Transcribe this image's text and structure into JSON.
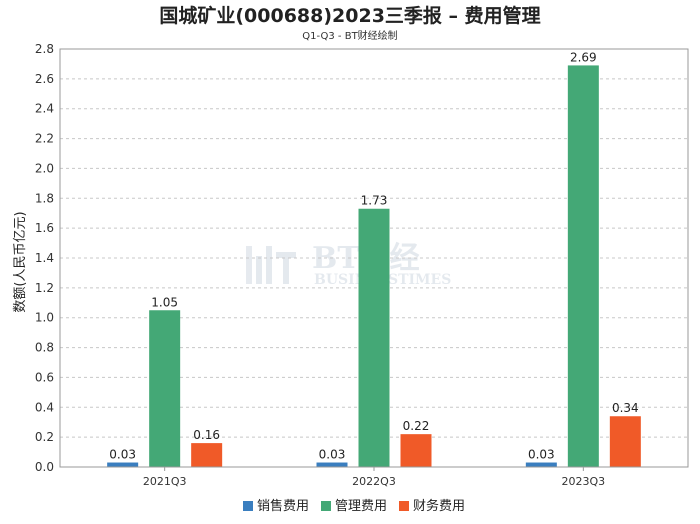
{
  "chart_data": {
    "type": "bar",
    "title": "国城矿业(000688)2023三季报 – 费用管理",
    "subtitle": "Q1-Q3 - BT财经绘制",
    "ylabel": "数额(人民币亿元)",
    "xlabel": "",
    "categories": [
      "2021Q3",
      "2022Q3",
      "2023Q3"
    ],
    "series": [
      {
        "name": "销售费用",
        "color": "#3a7ebf",
        "values": [
          0.03,
          0.03,
          0.03
        ]
      },
      {
        "name": "管理费用",
        "color": "#44a876",
        "values": [
          1.05,
          1.73,
          2.69
        ]
      },
      {
        "name": "财务费用",
        "color": "#f05a28",
        "values": [
          0.16,
          0.22,
          0.34
        ]
      }
    ],
    "data_labels": [
      [
        "0.03",
        "1.05",
        "0.16"
      ],
      [
        "0.03",
        "1.73",
        "0.22"
      ],
      [
        "0.03",
        "2.69",
        "0.34"
      ]
    ],
    "yticks": [
      "0.0",
      "0.2",
      "0.4",
      "0.6",
      "0.8",
      "1.0",
      "1.2",
      "1.4",
      "1.6",
      "1.8",
      "2.0",
      "2.2",
      "2.4",
      "2.6",
      "2.8"
    ],
    "ylim": [
      0,
      2.8
    ],
    "grid": true,
    "legend": "bottom"
  },
  "watermark": {
    "name": "BT财经",
    "tagline": "BUSINESSTIMES"
  }
}
